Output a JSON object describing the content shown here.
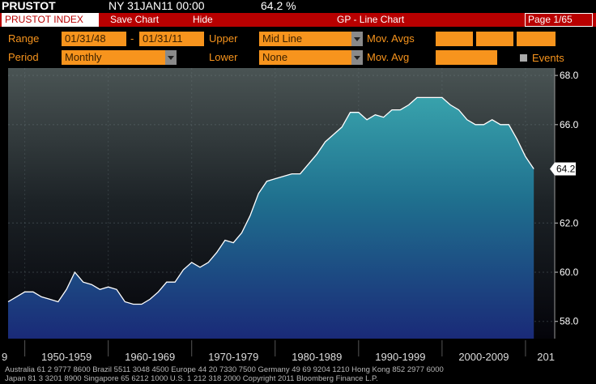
{
  "header": {
    "ticker": "PRUSTOT",
    "datetime": "NY 31JAN11 00:00",
    "last": "64.2 %"
  },
  "toolbar": {
    "security": "PRUSTOT INDEX",
    "save": "Save Chart",
    "hide": "Hide",
    "function": "GP - Line Chart",
    "page": "Page 1/65"
  },
  "controls": {
    "range_label": "Range",
    "start": "01/31/48",
    "dash": "-",
    "end": "01/31/11",
    "upper_label": "Upper",
    "upper": "Mid Line",
    "mov_avgs": "Mov. Avgs",
    "period_label": "Period",
    "period": "Monthly",
    "lower_label": "Lower",
    "lower": "None",
    "mov_avg": "Mov. Avg",
    "events": "Events"
  },
  "chart_data": {
    "type": "line",
    "color": "#ffffff",
    "x": [
      1948,
      1949,
      1950,
      1951,
      1952,
      1953,
      1954,
      1955,
      1956,
      1957,
      1958,
      1959,
      1960,
      1961,
      1962,
      1963,
      1964,
      1965,
      1966,
      1967,
      1968,
      1969,
      1970,
      1971,
      1972,
      1973,
      1974,
      1975,
      1976,
      1977,
      1978,
      1979,
      1980,
      1981,
      1982,
      1983,
      1984,
      1985,
      1986,
      1987,
      1988,
      1989,
      1990,
      1991,
      1992,
      1993,
      1994,
      1995,
      1996,
      1997,
      1998,
      1999,
      2000,
      2001,
      2002,
      2003,
      2004,
      2005,
      2006,
      2007,
      2008,
      2009,
      2010,
      2011
    ],
    "values": [
      58.8,
      59.0,
      59.2,
      59.2,
      59.0,
      58.9,
      58.8,
      59.3,
      60.0,
      59.6,
      59.5,
      59.3,
      59.4,
      59.3,
      58.8,
      58.7,
      58.7,
      58.9,
      59.2,
      59.6,
      59.6,
      60.1,
      60.4,
      60.2,
      60.4,
      60.8,
      61.3,
      61.2,
      61.6,
      62.3,
      63.2,
      63.7,
      63.8,
      63.9,
      64.0,
      64.0,
      64.4,
      64.8,
      65.3,
      65.6,
      65.9,
      66.5,
      66.5,
      66.2,
      66.4,
      66.3,
      66.6,
      66.6,
      66.8,
      67.1,
      67.1,
      67.1,
      67.1,
      66.8,
      66.6,
      66.2,
      66.0,
      66.0,
      66.2,
      66.0,
      66.0,
      65.4,
      64.7,
      64.2
    ],
    "xlim": [
      1948,
      2013.5
    ],
    "xticks": [
      1950,
      1960,
      1970,
      1980,
      1990,
      2000,
      2010
    ],
    "x_labels": [
      {
        "value": 1945,
        "label": "9"
      },
      {
        "value": 1955,
        "label": "1950-1959"
      },
      {
        "value": 1965,
        "label": "1960-1969"
      },
      {
        "value": 1975,
        "label": "1970-1979"
      },
      {
        "value": 1985,
        "label": "1980-1989"
      },
      {
        "value": 1995,
        "label": "1990-1999"
      },
      {
        "value": 2005,
        "label": "2000-2009"
      },
      {
        "value": 2015,
        "label": "201"
      }
    ],
    "ylim": [
      57.3,
      68.3
    ],
    "yticks": [
      {
        "value": 58,
        "label": "58.0"
      },
      {
        "value": 60,
        "label": "60.0"
      },
      {
        "value": 62,
        "label": "62.0"
      },
      {
        "value": 66,
        "label": "66.0"
      },
      {
        "value": 68,
        "label": "68.0"
      }
    ],
    "grid": true
  },
  "footer": {
    "line1": "Australia 61 2 9777 8600 Brazil 5511 3048 4500 Europe 44 20 7330 7500 Germany 49 69 9204 1210 Hong Kong 852 2977 6000",
    "line2": "Japan 81 3 3201 8900          Singapore 65 6212 1000          U.S. 1 212 318 2000          Copyright 2011 Bloomberg Finance L.P."
  }
}
